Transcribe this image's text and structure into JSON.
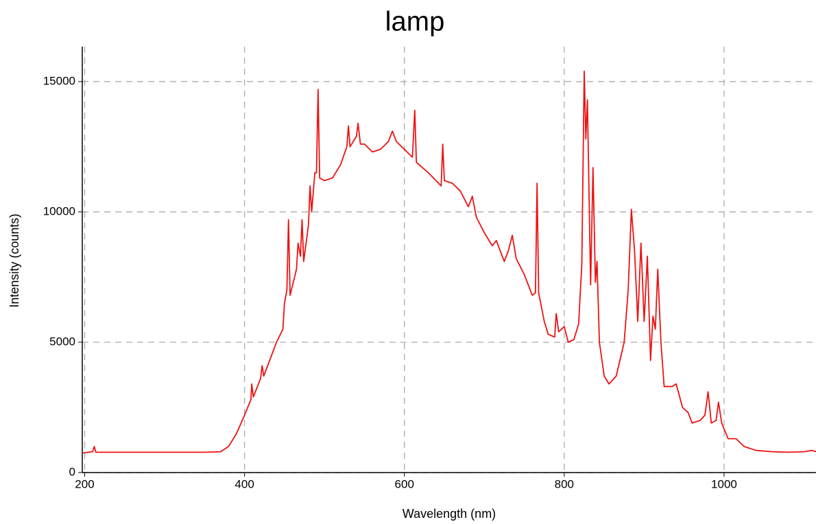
{
  "chart_data": {
    "type": "line",
    "title": "lamp",
    "x_label": "Wavelength (nm)",
    "y_label": "Intensity (counts)",
    "x": [
      197,
      210,
      212,
      214,
      250,
      300,
      350,
      370,
      380,
      390,
      400,
      408,
      409,
      411,
      420,
      422,
      424,
      440,
      448,
      450,
      453,
      455,
      457,
      465,
      467,
      470,
      472,
      474,
      480,
      482,
      484,
      488,
      490,
      492,
      494,
      500,
      510,
      520,
      528,
      530,
      532,
      540,
      542,
      545,
      550,
      560,
      570,
      580,
      585,
      590,
      600,
      610,
      613,
      615,
      630,
      646,
      648,
      650,
      660,
      670,
      680,
      685,
      690,
      700,
      710,
      715,
      720,
      725,
      730,
      735,
      740,
      750,
      760,
      764,
      766,
      768,
      775,
      780,
      788,
      790,
      793,
      800,
      805,
      812,
      818,
      822,
      825,
      827,
      829,
      833,
      836,
      839,
      841,
      844,
      850,
      856,
      865,
      875,
      880,
      884,
      888,
      892,
      896,
      900,
      904,
      908,
      911,
      914,
      917,
      921,
      925,
      935,
      940,
      948,
      955,
      960,
      970,
      976,
      980,
      984,
      990,
      993,
      997,
      1005,
      1015,
      1025,
      1040,
      1060,
      1080,
      1100,
      1110,
      1115
    ],
    "series": [
      {
        "name": "lamp",
        "color": "#ee1111",
        "values": [
          750,
          800,
          1000,
          780,
          780,
          780,
          780,
          800,
          1000,
          1500,
          2200,
          2800,
          3400,
          2900,
          3600,
          4100,
          3700,
          5000,
          5500,
          6500,
          7000,
          9700,
          6800,
          7800,
          8800,
          8300,
          9700,
          8100,
          9500,
          11000,
          10000,
          11500,
          11500,
          14700,
          11300,
          11200,
          11300,
          11800,
          12500,
          13300,
          12500,
          12900,
          13400,
          12600,
          12600,
          12300,
          12400,
          12700,
          13100,
          12700,
          12400,
          12100,
          13900,
          11900,
          11500,
          11000,
          12600,
          11200,
          11100,
          10800,
          10200,
          10600,
          9800,
          9200,
          8700,
          8900,
          8500,
          8100,
          8500,
          9100,
          8200,
          7600,
          6800,
          6900,
          11100,
          6900,
          5800,
          5300,
          5200,
          6100,
          5400,
          5600,
          5000,
          5100,
          5700,
          8000,
          15400,
          12800,
          14300,
          7200,
          11700,
          7300,
          8100,
          5000,
          3700,
          3400,
          3700,
          5000,
          7000,
          10100,
          8500,
          5800,
          8800,
          5800,
          8300,
          4300,
          6000,
          5500,
          7800,
          5000,
          3300,
          3300,
          3400,
          2500,
          2300,
          1900,
          2000,
          2200,
          3100,
          1900,
          2000,
          2700,
          1900,
          1300,
          1300,
          1000,
          850,
          800,
          780,
          800,
          850,
          800
        ]
      }
    ],
    "xlim": [
      197,
      1115
    ],
    "ylim": [
      0,
      16340
    ],
    "xticks": [
      200,
      400,
      600,
      800,
      1000
    ],
    "yticks": [
      0,
      5000,
      10000,
      15000
    ],
    "grid": true
  }
}
